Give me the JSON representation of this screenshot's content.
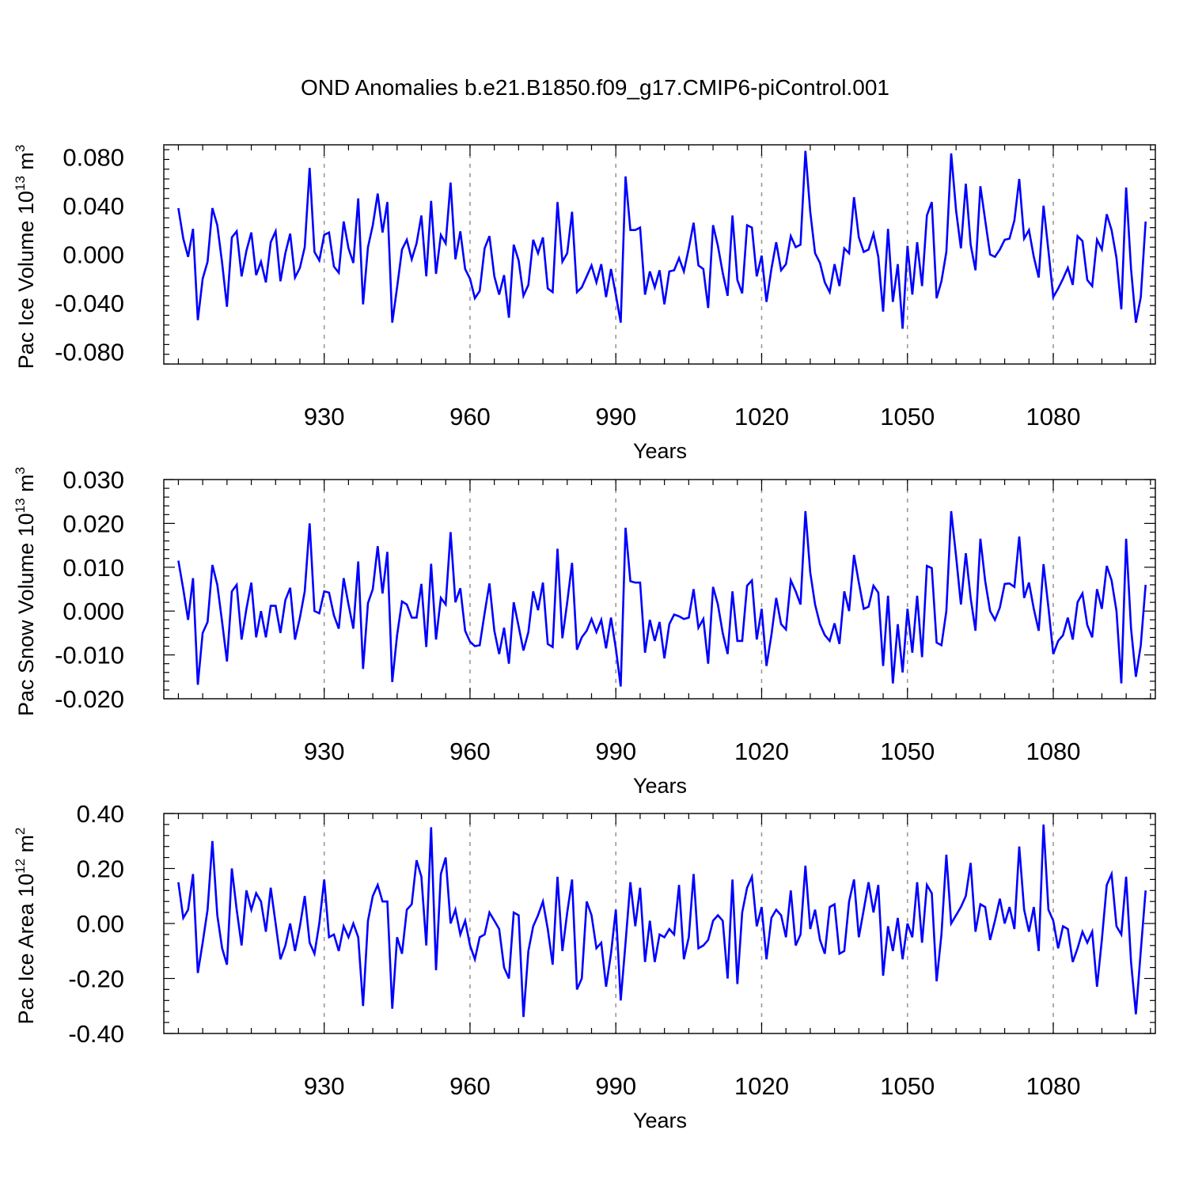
{
  "title": "OND Anomalies b.e21.B1850.f09_g17.CMIP6-piControl.001",
  "chart_data": [
    {
      "type": "line",
      "ylabel_main": "Pac Ice Volume 10",
      "ylabel_exp": "13",
      "ylabel_unit": " m",
      "ylabel_unit_exp": "3",
      "xlabel": "Years",
      "xlim": [
        897,
        1101
      ],
      "ylim": [
        -0.09,
        0.09
      ],
      "yticks": [
        -0.08,
        -0.04,
        0.0,
        0.04,
        0.08
      ],
      "ytick_labels": [
        "-0.080",
        "-0.040",
        "0.000",
        "0.040",
        "0.080"
      ],
      "xticks": [
        930,
        960,
        990,
        1020,
        1050,
        1080
      ],
      "xtick_labels": [
        "930",
        "960",
        "990",
        "1020",
        "1050",
        "1080"
      ],
      "grid_x": [
        930,
        960,
        990,
        1020,
        1050,
        1080
      ],
      "line_color": "#0000ff",
      "x_start": 900,
      "values": [
        0.038,
        0.013,
        -0.002,
        0.021,
        -0.054,
        -0.02,
        -0.006,
        0.038,
        0.024,
        -0.007,
        -0.043,
        0.014,
        0.019,
        -0.018,
        0.003,
        0.018,
        -0.017,
        -0.006,
        -0.023,
        0.01,
        0.019,
        -0.022,
        0.001,
        0.017,
        -0.019,
        -0.011,
        0.006,
        0.071,
        0.002,
        -0.005,
        0.016,
        0.018,
        -0.01,
        -0.015,
        0.027,
        0.005,
        -0.007,
        0.046,
        -0.041,
        0.006,
        0.024,
        0.05,
        0.018,
        0.043,
        -0.056,
        -0.027,
        0.004,
        0.012,
        -0.004,
        0.009,
        0.032,
        -0.018,
        0.044,
        -0.016,
        0.016,
        0.009,
        0.059,
        -0.004,
        0.019,
        -0.012,
        -0.02,
        -0.036,
        -0.03,
        0.005,
        0.015,
        -0.018,
        -0.033,
        -0.017,
        -0.052,
        0.008,
        -0.005,
        -0.034,
        -0.025,
        0.012,
        0.001,
        0.014,
        -0.028,
        -0.031,
        0.043,
        -0.006,
        0.001,
        0.035,
        -0.031,
        -0.027,
        -0.018,
        -0.009,
        -0.023,
        -0.008,
        -0.035,
        -0.012,
        -0.033,
        -0.056,
        0.064,
        0.02,
        0.02,
        0.022,
        -0.033,
        -0.014,
        -0.027,
        -0.013,
        -0.041,
        -0.014,
        -0.013,
        -0.003,
        -0.014,
        0.005,
        0.026,
        -0.009,
        -0.012,
        -0.044,
        0.024,
        0.007,
        -0.015,
        -0.034,
        0.032,
        -0.021,
        -0.032,
        0.024,
        0.022,
        -0.018,
        -0.001,
        -0.039,
        -0.012,
        0.01,
        -0.013,
        -0.008,
        0.015,
        0.006,
        0.008,
        0.085,
        0.035,
        0.001,
        -0.007,
        -0.023,
        -0.031,
        -0.008,
        -0.026,
        0.005,
        0.001,
        0.047,
        0.014,
        0.002,
        0.004,
        0.017,
        -0.002,
        -0.047,
        0.021,
        -0.039,
        -0.008,
        -0.061,
        0.007,
        -0.033,
        0.01,
        -0.026,
        0.032,
        0.043,
        -0.036,
        -0.022,
        0.002,
        0.083,
        0.036,
        0.005,
        0.058,
        0.008,
        -0.013,
        0.056,
        0.028,
        0.0,
        -0.002,
        0.004,
        0.012,
        0.013,
        0.028,
        0.062,
        0.013,
        0.02,
        -0.002,
        -0.019,
        0.04,
        0.003,
        -0.035,
        -0.028,
        -0.02,
        -0.011,
        -0.025,
        0.015,
        0.011,
        -0.021,
        -0.026,
        0.012,
        0.004,
        0.033,
        0.02,
        -0.003,
        -0.045,
        0.055,
        -0.012,
        -0.056,
        -0.035,
        0.027
      ]
    },
    {
      "type": "line",
      "ylabel_main": "Pac Snow Volume 10",
      "ylabel_exp": "13",
      "ylabel_unit": " m",
      "ylabel_unit_exp": "3",
      "xlabel": "Years",
      "xlim": [
        897,
        1101
      ],
      "ylim": [
        -0.02,
        0.03
      ],
      "yticks": [
        -0.02,
        -0.01,
        0.0,
        0.01,
        0.02,
        0.03
      ],
      "ytick_labels": [
        "-0.020",
        "-0.010",
        "0.000",
        "0.010",
        "0.020",
        "0.030"
      ],
      "xticks": [
        930,
        960,
        990,
        1020,
        1050,
        1080
      ],
      "xtick_labels": [
        "930",
        "960",
        "990",
        "1020",
        "1050",
        "1080"
      ],
      "grid_x": [
        930,
        960,
        990,
        1020,
        1050,
        1080
      ],
      "line_color": "#0000ff",
      "x_start": 900,
      "values": [
        0.0115,
        0.005,
        -0.002,
        0.0075,
        -0.0168,
        -0.005,
        -0.0025,
        0.0105,
        0.006,
        -0.0025,
        -0.0115,
        0.0045,
        0.006,
        -0.0065,
        0.0005,
        0.0065,
        -0.006,
        0.0,
        -0.006,
        0.0012,
        0.0012,
        -0.005,
        0.0025,
        0.0053,
        -0.0065,
        -0.0015,
        0.0045,
        0.02,
        0.0,
        -0.0005,
        0.0045,
        0.0042,
        -0.001,
        -0.004,
        0.0075,
        0.0015,
        -0.004,
        0.0113,
        -0.0132,
        0.0018,
        0.005,
        0.0148,
        0.004,
        0.0135,
        -0.0162,
        -0.0055,
        0.0022,
        0.0015,
        -0.0015,
        -0.0015,
        0.0062,
        -0.0082,
        0.0108,
        -0.0065,
        0.003,
        0.0015,
        0.018,
        0.002,
        0.0052,
        -0.0045,
        -0.007,
        -0.008,
        -0.0078,
        -0.0005,
        0.0063,
        -0.0045,
        -0.0098,
        -0.0038,
        -0.012,
        0.002,
        -0.0035,
        -0.009,
        -0.0048,
        0.0045,
        0.0002,
        0.0065,
        -0.0075,
        -0.0082,
        0.0142,
        -0.0062,
        0.002,
        0.011,
        -0.0088,
        -0.006,
        -0.0045,
        -0.0018,
        -0.0048,
        -0.002,
        -0.0085,
        -0.0015,
        -0.0085,
        -0.0172,
        0.019,
        0.0068,
        0.0065,
        0.0065,
        -0.0095,
        -0.002,
        -0.0068,
        -0.0025,
        -0.0108,
        -0.003,
        -0.0008,
        -0.0012,
        -0.0018,
        -0.0015,
        0.005,
        -0.0038,
        -0.0018,
        -0.012,
        0.0055,
        0.0015,
        -0.005,
        -0.0098,
        0.0045,
        -0.0068,
        -0.0068,
        0.0058,
        0.007,
        -0.0065,
        0.0005,
        -0.0125,
        -0.0055,
        0.003,
        -0.003,
        -0.0042,
        0.007,
        0.0045,
        0.0015,
        0.0228,
        0.0088,
        0.0015,
        -0.003,
        -0.0055,
        -0.0068,
        -0.0028,
        -0.0075,
        0.0045,
        0.0,
        0.0128,
        0.0065,
        0.0005,
        0.001,
        0.0058,
        0.0042,
        -0.0125,
        0.0035,
        -0.0165,
        -0.003,
        -0.014,
        0.0005,
        -0.0095,
        0.0035,
        -0.0105,
        0.0103,
        0.0098,
        -0.0072,
        -0.0078,
        0.0,
        0.0228,
        0.0125,
        0.0015,
        0.0132,
        0.003,
        -0.0045,
        0.0165,
        0.0068,
        0.0,
        -0.002,
        0.0008,
        0.0062,
        0.0063,
        0.0055,
        0.017,
        0.003,
        0.0065,
        0.0005,
        -0.0045,
        0.0107,
        0.0008,
        -0.0098,
        -0.0068,
        -0.0055,
        -0.0015,
        -0.0065,
        0.002,
        0.004,
        -0.0032,
        -0.006,
        0.005,
        0.0005,
        0.0103,
        0.007,
        0.0,
        -0.0165,
        0.0165,
        -0.004,
        -0.015,
        -0.0078,
        0.006
      ]
    },
    {
      "type": "line",
      "ylabel_main": "Pac Ice Area 10",
      "ylabel_exp": "12",
      "ylabel_unit": " m",
      "ylabel_unit_exp": "2",
      "xlabel": "Years",
      "xlim": [
        897,
        1101
      ],
      "ylim": [
        -0.4,
        0.4
      ],
      "yticks": [
        -0.4,
        -0.2,
        0.0,
        0.2,
        0.4
      ],
      "ytick_labels": [
        "-0.40",
        "-0.20",
        "0.00",
        "0.20",
        "0.40"
      ],
      "xticks": [
        930,
        960,
        990,
        1020,
        1050,
        1080
      ],
      "xtick_labels": [
        "930",
        "960",
        "990",
        "1020",
        "1050",
        "1080"
      ],
      "grid_x": [
        930,
        960,
        990,
        1020,
        1050,
        1080
      ],
      "line_color": "#0000ff",
      "x_start": 900,
      "values": [
        0.15,
        0.02,
        0.05,
        0.18,
        -0.18,
        -0.07,
        0.05,
        0.3,
        0.03,
        -0.09,
        -0.15,
        0.2,
        0.05,
        -0.08,
        0.12,
        0.05,
        0.11,
        0.08,
        -0.03,
        0.13,
        0.0,
        -0.13,
        -0.08,
        0.0,
        -0.1,
        -0.01,
        0.1,
        -0.07,
        -0.11,
        0.0,
        0.16,
        -0.05,
        -0.04,
        -0.1,
        -0.01,
        -0.05,
        0.0,
        -0.05,
        -0.3,
        0.01,
        0.1,
        0.14,
        0.08,
        0.08,
        -0.31,
        -0.05,
        -0.11,
        0.05,
        0.07,
        0.23,
        0.17,
        -0.08,
        0.35,
        -0.17,
        0.18,
        0.24,
        0.0,
        0.05,
        -0.04,
        0.01,
        -0.08,
        -0.13,
        -0.05,
        -0.04,
        0.04,
        0.01,
        -0.02,
        -0.16,
        -0.2,
        0.04,
        0.03,
        -0.34,
        -0.1,
        -0.01,
        0.03,
        0.08,
        -0.02,
        -0.15,
        0.17,
        -0.1,
        0.04,
        0.16,
        -0.24,
        -0.2,
        0.08,
        0.03,
        -0.09,
        -0.07,
        -0.23,
        -0.11,
        0.05,
        -0.28,
        -0.07,
        0.15,
        -0.01,
        0.13,
        -0.14,
        0.01,
        -0.14,
        -0.04,
        -0.05,
        -0.02,
        -0.04,
        0.14,
        -0.13,
        -0.05,
        0.18,
        -0.09,
        -0.08,
        -0.06,
        0.01,
        0.03,
        0.01,
        -0.2,
        0.16,
        -0.22,
        0.04,
        0.13,
        0.17,
        -0.01,
        0.06,
        -0.13,
        0.02,
        0.05,
        0.03,
        -0.05,
        0.12,
        -0.08,
        -0.04,
        0.21,
        -0.02,
        0.05,
        -0.06,
        -0.11,
        0.06,
        0.07,
        -0.11,
        -0.1,
        0.08,
        0.16,
        -0.05,
        0.05,
        0.15,
        0.04,
        0.14,
        -0.19,
        -0.01,
        -0.1,
        0.02,
        -0.13,
        0.0,
        -0.05,
        0.15,
        -0.07,
        0.14,
        0.11,
        -0.21,
        -0.04,
        0.25,
        0.0,
        0.03,
        0.06,
        0.1,
        0.22,
        -0.03,
        0.07,
        0.06,
        -0.06,
        0.01,
        0.09,
        0.0,
        0.06,
        -0.02,
        0.28,
        0.05,
        -0.03,
        0.06,
        -0.1,
        0.36,
        0.05,
        0.01,
        -0.09,
        -0.01,
        -0.02,
        -0.14,
        -0.09,
        -0.03,
        -0.07,
        -0.03,
        -0.23,
        -0.06,
        0.14,
        0.18,
        -0.01,
        -0.04,
        0.17,
        -0.14,
        -0.33,
        -0.1,
        0.12
      ]
    }
  ]
}
